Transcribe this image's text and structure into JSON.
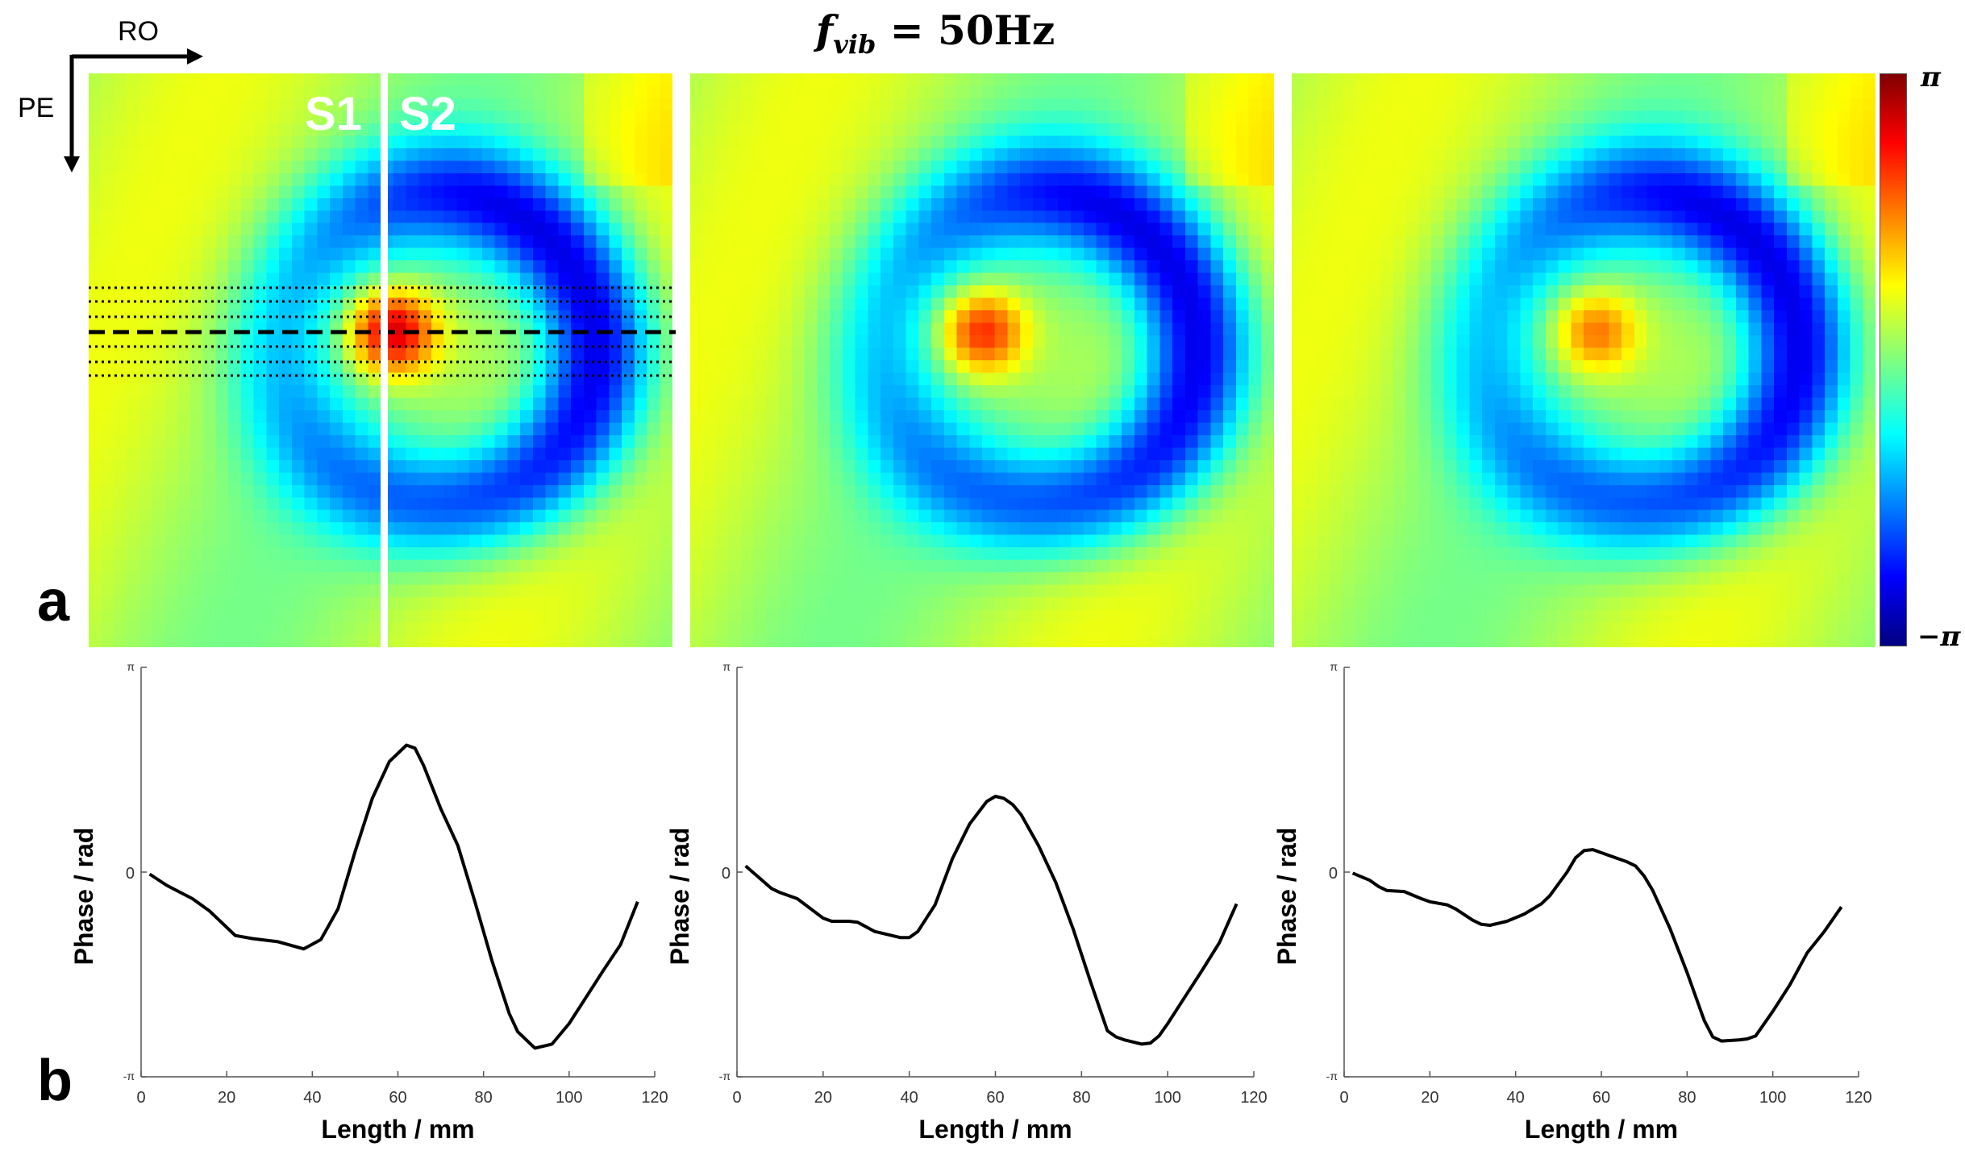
{
  "figure": {
    "title_main": "f",
    "title_sub": "vib",
    "title_rest": " = 50Hz",
    "panel_a_label": "a",
    "panel_b_label": "b",
    "ro_label": "RO",
    "pe_label": "PE",
    "s1_label": "S1",
    "s2_label": "S2",
    "colorbar": {
      "max_label": "π",
      "min_label": "−π",
      "colormap": "jet"
    }
  },
  "chart_data": [
    {
      "type": "line",
      "xlabel": "Length / mm",
      "ylabel": "Phase / rad",
      "xlim": [
        0,
        120
      ],
      "ylim_in_pi": [
        -1,
        1
      ],
      "xticks": [
        "0",
        "20",
        "40",
        "60",
        "80",
        "100",
        "120"
      ],
      "yticks": [
        "-π",
        "0",
        "π"
      ],
      "x": [
        2,
        6,
        12,
        16,
        22,
        26,
        32,
        38,
        42,
        46,
        50,
        54,
        58,
        62,
        64,
        66,
        70,
        74,
        78,
        82,
        86,
        88,
        92,
        96,
        100,
        104,
        108,
        112,
        116
      ],
      "y_in_pi": [
        -0.01,
        -0.065,
        -0.13,
        -0.19,
        -0.31,
        -0.325,
        -0.34,
        -0.375,
        -0.33,
        -0.18,
        0.1,
        0.36,
        0.54,
        0.62,
        0.605,
        0.52,
        0.31,
        0.13,
        -0.145,
        -0.435,
        -0.69,
        -0.78,
        -0.86,
        -0.84,
        -0.74,
        -0.61,
        -0.48,
        -0.355,
        -0.145
      ]
    },
    {
      "type": "line",
      "xlabel": "Length / mm",
      "ylabel": "Phase / rad",
      "xlim": [
        0,
        120
      ],
      "ylim_in_pi": [
        -1,
        1
      ],
      "xticks": [
        "0",
        "20",
        "40",
        "60",
        "80",
        "100",
        "120"
      ],
      "yticks": [
        "-π",
        "0",
        "π"
      ],
      "x": [
        2,
        8,
        10,
        14,
        20,
        22,
        26,
        28,
        32,
        38,
        40,
        42,
        46,
        50,
        54,
        58,
        60,
        62,
        64,
        66,
        70,
        74,
        78,
        82,
        86,
        88,
        90,
        94,
        96,
        98,
        100,
        104,
        108,
        112,
        116
      ],
      "y_in_pi": [
        0.03,
        -0.08,
        -0.1,
        -0.13,
        -0.225,
        -0.24,
        -0.24,
        -0.245,
        -0.29,
        -0.32,
        -0.32,
        -0.29,
        -0.16,
        0.065,
        0.235,
        0.345,
        0.37,
        0.36,
        0.33,
        0.28,
        0.13,
        -0.05,
        -0.275,
        -0.53,
        -0.775,
        -0.805,
        -0.82,
        -0.84,
        -0.835,
        -0.8,
        -0.74,
        -0.61,
        -0.48,
        -0.345,
        -0.155
      ]
    },
    {
      "type": "line",
      "xlabel": "Length / mm",
      "ylabel": "Phase / rad",
      "xlim": [
        0,
        120
      ],
      "ylim_in_pi": [
        -1,
        1
      ],
      "xticks": [
        "0",
        "20",
        "40",
        "60",
        "80",
        "100",
        "120"
      ],
      "yticks": [
        "-π",
        "0",
        "π"
      ],
      "x": [
        2,
        6,
        8,
        10,
        14,
        18,
        20,
        24,
        26,
        30,
        32,
        34,
        38,
        42,
        46,
        48,
        52,
        54,
        56,
        58,
        62,
        66,
        68,
        70,
        72,
        76,
        80,
        84,
        86,
        88,
        92,
        94,
        96,
        100,
        104,
        108,
        112,
        116
      ],
      "y_in_pi": [
        -0.005,
        -0.04,
        -0.07,
        -0.09,
        -0.095,
        -0.13,
        -0.145,
        -0.16,
        -0.18,
        -0.235,
        -0.255,
        -0.26,
        -0.24,
        -0.205,
        -0.155,
        -0.115,
        0,
        0.07,
        0.105,
        0.11,
        0.08,
        0.05,
        0.03,
        -0.02,
        -0.09,
        -0.275,
        -0.49,
        -0.725,
        -0.805,
        -0.825,
        -0.82,
        -0.815,
        -0.8,
        -0.68,
        -0.55,
        -0.395,
        -0.29,
        -0.17
      ]
    }
  ]
}
